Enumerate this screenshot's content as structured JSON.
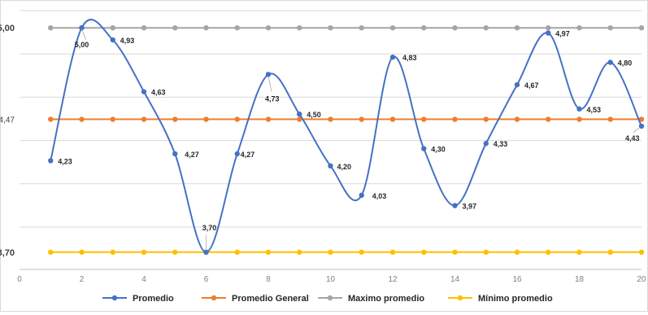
{
  "chart_data": {
    "type": "line",
    "x": [
      1,
      2,
      3,
      4,
      5,
      6,
      7,
      8,
      9,
      10,
      11,
      12,
      13,
      14,
      15,
      16,
      17,
      18,
      19,
      20
    ],
    "xlim": [
      0,
      20
    ],
    "ylim": [
      3.6,
      5.1
    ],
    "x_ticks": [
      "0",
      "2",
      "4",
      "6",
      "8",
      "10",
      "12",
      "14",
      "16",
      "18",
      "20"
    ],
    "y_labels": [
      {
        "value": 5.0,
        "text": "5,00",
        "bold": true
      },
      {
        "value": 4.47,
        "text": "4,47",
        "bold": false
      },
      {
        "value": 3.7,
        "text": "3,70",
        "bold": true
      }
    ],
    "grid": true,
    "legend_position": "bottom",
    "series": [
      {
        "name": "Promedio",
        "color": "#4472c4",
        "smooth": true,
        "values": [
          4.23,
          5.0,
          4.93,
          4.63,
          4.27,
          3.7,
          4.27,
          4.73,
          4.5,
          4.2,
          4.03,
          4.83,
          4.3,
          3.97,
          4.33,
          4.67,
          4.97,
          4.53,
          4.8,
          4.43
        ],
        "labels": [
          "4,23",
          "5,00",
          "4,93",
          "4,63",
          "4,27",
          "3,70",
          "4,27",
          "4,73",
          "4,50",
          "4,20",
          "4,03",
          "4,83",
          "4,30",
          "3,97",
          "4,33",
          "4,67",
          "4,97",
          "4,53",
          "4,80",
          "4,43"
        ]
      },
      {
        "name": "Promedio General",
        "color": "#ed7d31",
        "smooth": false,
        "values": [
          4.47,
          4.47,
          4.47,
          4.47,
          4.47,
          4.47,
          4.47,
          4.47,
          4.47,
          4.47,
          4.47,
          4.47,
          4.47,
          4.47,
          4.47,
          4.47,
          4.47,
          4.47,
          4.47,
          4.47
        ]
      },
      {
        "name": "Maximo promedio",
        "color": "#a5a5a5",
        "smooth": false,
        "values": [
          5.0,
          5.0,
          5.0,
          5.0,
          5.0,
          5.0,
          5.0,
          5.0,
          5.0,
          5.0,
          5.0,
          5.0,
          5.0,
          5.0,
          5.0,
          5.0,
          5.0,
          5.0,
          5.0,
          5.0
        ]
      },
      {
        "name": "Mínimo promedio",
        "color": "#ffc000",
        "smooth": false,
        "values": [
          3.7,
          3.7,
          3.7,
          3.7,
          3.7,
          3.7,
          3.7,
          3.7,
          3.7,
          3.7,
          3.7,
          3.7,
          3.7,
          3.7,
          3.7,
          3.7,
          3.7,
          3.7,
          3.7,
          3.7
        ]
      }
    ]
  }
}
